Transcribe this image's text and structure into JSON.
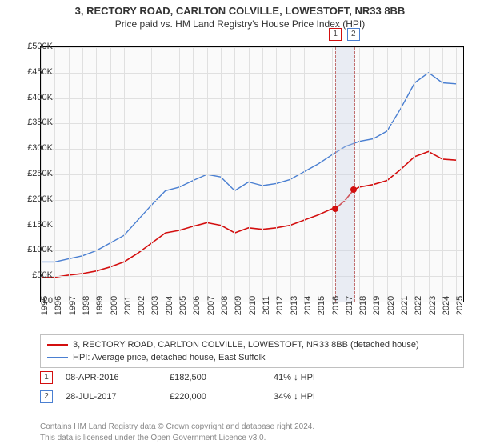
{
  "title": {
    "line1": "3, RECTORY ROAD, CARLTON COLVILLE, LOWESTOFT, NR33 8BB",
    "line2": "Price paid vs. HM Land Registry's House Price Index (HPI)"
  },
  "chart": {
    "plot_bg": "#fafafa",
    "border_color": "#000000",
    "grid_color": "#e0e0e0",
    "x": {
      "min": 1995,
      "max": 2025.5,
      "ticks": [
        1995,
        1996,
        1997,
        1998,
        1999,
        2000,
        2001,
        2002,
        2003,
        2004,
        2005,
        2006,
        2007,
        2008,
        2009,
        2010,
        2011,
        2012,
        2013,
        2014,
        2015,
        2016,
        2017,
        2018,
        2019,
        2020,
        2021,
        2022,
        2023,
        2024,
        2025
      ],
      "labels": [
        "1995",
        "1996",
        "1997",
        "1998",
        "1999",
        "2000",
        "2001",
        "2002",
        "2003",
        "2004",
        "2005",
        "2006",
        "2007",
        "2008",
        "2009",
        "2010",
        "2011",
        "2012",
        "2013",
        "2014",
        "2015",
        "2016",
        "2017",
        "2018",
        "2019",
        "2020",
        "2021",
        "2022",
        "2023",
        "2024",
        "2025"
      ]
    },
    "y": {
      "min": 0,
      "max": 500000,
      "ticks": [
        0,
        50000,
        100000,
        150000,
        200000,
        250000,
        300000,
        350000,
        400000,
        450000,
        500000
      ],
      "labels": [
        "£0",
        "£50K",
        "£100K",
        "£150K",
        "£200K",
        "£250K",
        "£300K",
        "£350K",
        "£400K",
        "£450K",
        "£500K"
      ]
    },
    "series": [
      {
        "id": "subject",
        "color": "#d30f0f",
        "width": 1.6,
        "label": "3, RECTORY ROAD, CARLTON COLVILLE, LOWESTOFT, NR33 8BB (detached house)",
        "points": [
          [
            1995,
            48000
          ],
          [
            1996,
            48000
          ],
          [
            1997,
            52000
          ],
          [
            1998,
            55000
          ],
          [
            1999,
            60000
          ],
          [
            2000,
            68000
          ],
          [
            2001,
            78000
          ],
          [
            2002,
            95000
          ],
          [
            2003,
            115000
          ],
          [
            2004,
            135000
          ],
          [
            2005,
            140000
          ],
          [
            2006,
            148000
          ],
          [
            2007,
            155000
          ],
          [
            2008,
            150000
          ],
          [
            2009,
            135000
          ],
          [
            2010,
            145000
          ],
          [
            2011,
            142000
          ],
          [
            2012,
            145000
          ],
          [
            2013,
            150000
          ],
          [
            2014,
            160000
          ],
          [
            2015,
            170000
          ],
          [
            2016,
            182000
          ],
          [
            2016.3,
            183000
          ],
          [
            2017,
            200000
          ],
          [
            2017.6,
            220000
          ],
          [
            2018,
            225000
          ],
          [
            2019,
            230000
          ],
          [
            2020,
            238000
          ],
          [
            2021,
            260000
          ],
          [
            2022,
            285000
          ],
          [
            2023,
            295000
          ],
          [
            2024,
            280000
          ],
          [
            2025,
            278000
          ]
        ]
      },
      {
        "id": "hpi",
        "color": "#4a7fd1",
        "width": 1.4,
        "label": "HPI: Average price, detached house, East Suffolk",
        "points": [
          [
            1995,
            78000
          ],
          [
            1996,
            78000
          ],
          [
            1997,
            84000
          ],
          [
            1998,
            90000
          ],
          [
            1999,
            100000
          ],
          [
            2000,
            115000
          ],
          [
            2001,
            130000
          ],
          [
            2002,
            160000
          ],
          [
            2003,
            190000
          ],
          [
            2004,
            218000
          ],
          [
            2005,
            225000
          ],
          [
            2006,
            238000
          ],
          [
            2007,
            250000
          ],
          [
            2008,
            245000
          ],
          [
            2009,
            218000
          ],
          [
            2010,
            235000
          ],
          [
            2011,
            228000
          ],
          [
            2012,
            232000
          ],
          [
            2013,
            240000
          ],
          [
            2014,
            255000
          ],
          [
            2015,
            270000
          ],
          [
            2016,
            288000
          ],
          [
            2017,
            305000
          ],
          [
            2018,
            315000
          ],
          [
            2019,
            320000
          ],
          [
            2020,
            335000
          ],
          [
            2021,
            380000
          ],
          [
            2022,
            430000
          ],
          [
            2023,
            450000
          ],
          [
            2024,
            430000
          ],
          [
            2025,
            428000
          ]
        ]
      }
    ],
    "markers": [
      {
        "n": "1",
        "x": 2016.27,
        "color": "#d30f0f",
        "point_y": 182500
      },
      {
        "n": "2",
        "x": 2017.57,
        "color": "#4a7fd1",
        "point_y": 220000
      }
    ],
    "point_dot_color": "#d30f0f"
  },
  "legend": {
    "rows": [
      {
        "color": "#d30f0f",
        "text": "3, RECTORY ROAD, CARLTON COLVILLE, LOWESTOFT, NR33 8BB (detached house)"
      },
      {
        "color": "#4a7fd1",
        "text": "HPI: Average price, detached house, East Suffolk"
      }
    ]
  },
  "sales": [
    {
      "n": "1",
      "color": "#d30f0f",
      "date": "08-APR-2016",
      "price": "£182,500",
      "delta": "41% ↓ HPI"
    },
    {
      "n": "2",
      "color": "#4a7fd1",
      "date": "28-JUL-2017",
      "price": "£220,000",
      "delta": "34% ↓ HPI"
    }
  ],
  "footer": {
    "line1": "Contains HM Land Registry data © Crown copyright and database right 2024.",
    "line2": "This data is licensed under the Open Government Licence v3.0."
  }
}
